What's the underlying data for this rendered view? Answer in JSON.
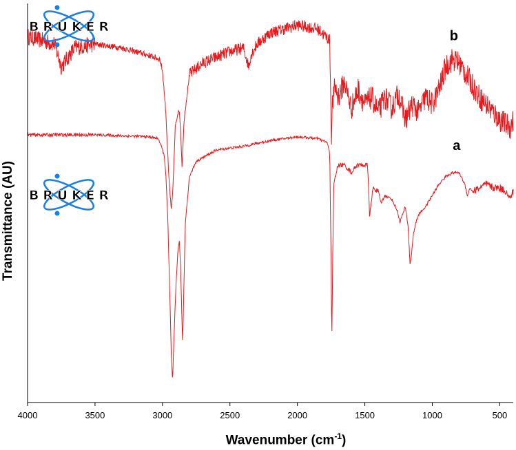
{
  "chart_data": {
    "type": "line",
    "title": "",
    "xlabel": "Wavenumber (cm",
    "xlabel_sup": "-1",
    "xlabel_end": ")",
    "ylabel": "Transmittance (AU)",
    "xlim": [
      4000,
      400
    ],
    "x_reversed": true,
    "x_ticks": [
      4000,
      3500,
      3000,
      2500,
      2000,
      1500,
      1000,
      500
    ],
    "ylim": [
      0,
      100
    ],
    "grid": false,
    "logo_text": "BRUKER",
    "series": [
      {
        "name": "b",
        "color": "#e8191c",
        "noisy": true,
        "points": [
          [
            4000,
            94
          ],
          [
            3800,
            92
          ],
          [
            3750,
            86
          ],
          [
            3650,
            91
          ],
          [
            3500,
            92
          ],
          [
            3300,
            91
          ],
          [
            3100,
            89
          ],
          [
            3020,
            88
          ],
          [
            3000,
            85
          ],
          [
            2975,
            74
          ],
          [
            2955,
            58
          ],
          [
            2935,
            48
          ],
          [
            2925,
            52
          ],
          [
            2905,
            70
          ],
          [
            2880,
            75
          ],
          [
            2870,
            72
          ],
          [
            2855,
            60
          ],
          [
            2850,
            63
          ],
          [
            2840,
            72
          ],
          [
            2800,
            84
          ],
          [
            2700,
            87
          ],
          [
            2500,
            90
          ],
          [
            2400,
            91
          ],
          [
            2360,
            86
          ],
          [
            2345,
            89
          ],
          [
            2300,
            92
          ],
          [
            2200,
            95
          ],
          [
            2000,
            97
          ],
          [
            1850,
            96
          ],
          [
            1760,
            93
          ],
          [
            1748,
            68
          ],
          [
            1740,
            76
          ],
          [
            1720,
            81
          ],
          [
            1700,
            78
          ],
          [
            1650,
            82
          ],
          [
            1600,
            75
          ],
          [
            1550,
            80
          ],
          [
            1500,
            76
          ],
          [
            1450,
            78
          ],
          [
            1400,
            74
          ],
          [
            1350,
            78
          ],
          [
            1300,
            75
          ],
          [
            1250,
            79
          ],
          [
            1200,
            72
          ],
          [
            1150,
            76
          ],
          [
            1100,
            74
          ],
          [
            1050,
            78
          ],
          [
            1000,
            76
          ],
          [
            950,
            80
          ],
          [
            900,
            86
          ],
          [
            850,
            88
          ],
          [
            800,
            87
          ],
          [
            700,
            81
          ],
          [
            650,
            78
          ],
          [
            600,
            76
          ],
          [
            500,
            72
          ],
          [
            420,
            70
          ],
          [
            400,
            72
          ]
        ]
      },
      {
        "name": "a",
        "color": "#e8191c",
        "noisy": false,
        "points": [
          [
            4000,
            68
          ],
          [
            3500,
            68
          ],
          [
            3100,
            67.5
          ],
          [
            3030,
            67
          ],
          [
            3010,
            65
          ],
          [
            2990,
            63
          ],
          [
            2975,
            58
          ],
          [
            2960,
            45
          ],
          [
            2945,
            25
          ],
          [
            2935,
            10
          ],
          [
            2925,
            3
          ],
          [
            2915,
            14
          ],
          [
            2900,
            28
          ],
          [
            2885,
            38
          ],
          [
            2875,
            40
          ],
          [
            2865,
            32
          ],
          [
            2855,
            18
          ],
          [
            2850,
            13
          ],
          [
            2842,
            27
          ],
          [
            2830,
            45
          ],
          [
            2800,
            57
          ],
          [
            2750,
            61
          ],
          [
            2600,
            64
          ],
          [
            2400,
            65
          ],
          [
            2200,
            66.5
          ],
          [
            2000,
            67.5
          ],
          [
            1850,
            67
          ],
          [
            1780,
            66
          ],
          [
            1760,
            63
          ],
          [
            1750,
            35
          ],
          [
            1745,
            13
          ],
          [
            1738,
            36
          ],
          [
            1730,
            55
          ],
          [
            1700,
            60
          ],
          [
            1650,
            60
          ],
          [
            1600,
            58
          ],
          [
            1560,
            60
          ],
          [
            1520,
            60
          ],
          [
            1480,
            60
          ],
          [
            1465,
            47
          ],
          [
            1455,
            49
          ],
          [
            1440,
            54
          ],
          [
            1400,
            53
          ],
          [
            1380,
            50
          ],
          [
            1350,
            52
          ],
          [
            1300,
            51
          ],
          [
            1260,
            48
          ],
          [
            1240,
            45
          ],
          [
            1220,
            47
          ],
          [
            1200,
            49
          ],
          [
            1180,
            44
          ],
          [
            1165,
            34
          ],
          [
            1155,
            36
          ],
          [
            1140,
            42
          ],
          [
            1120,
            45
          ],
          [
            1100,
            47
          ],
          [
            1050,
            49
          ],
          [
            1000,
            52
          ],
          [
            950,
            55
          ],
          [
            900,
            57
          ],
          [
            850,
            58
          ],
          [
            800,
            58
          ],
          [
            760,
            55
          ],
          [
            740,
            52
          ],
          [
            720,
            54
          ],
          [
            700,
            53
          ],
          [
            650,
            54
          ],
          [
            600,
            55
          ],
          [
            550,
            54
          ],
          [
            500,
            54
          ],
          [
            450,
            53
          ],
          [
            430,
            51
          ],
          [
            400,
            53
          ]
        ]
      }
    ],
    "annotations": [
      {
        "text": "b",
        "x": 840,
        "y": 93
      },
      {
        "text": "a",
        "x": 820,
        "y": 64
      }
    ]
  }
}
